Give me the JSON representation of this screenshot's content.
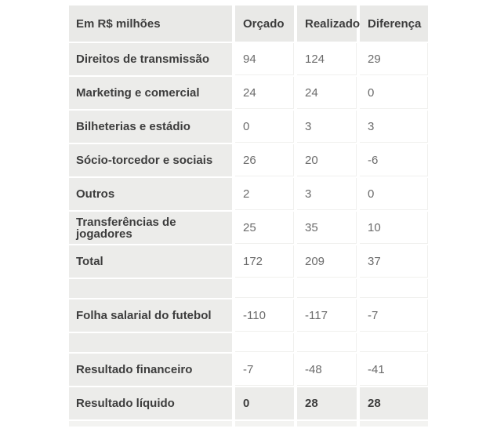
{
  "chart_data": {
    "type": "table",
    "title": "Em R$ milhões",
    "columns": [
      "Em R$ milhões",
      "Orçado",
      "Realizado",
      "Diferença"
    ],
    "rows": [
      {
        "label": "Direitos de transmissão",
        "values": [
          "94",
          "124",
          "29"
        ],
        "style": "data"
      },
      {
        "label": "Marketing e comercial",
        "values": [
          "24",
          "24",
          "0"
        ],
        "style": "data"
      },
      {
        "label": "Bilheterias e estádio",
        "values": [
          "0",
          "3",
          "3"
        ],
        "style": "data"
      },
      {
        "label": "Sócio-torcedor e sociais",
        "values": [
          "26",
          "20",
          "-6"
        ],
        "style": "data"
      },
      {
        "label": "Outros",
        "values": [
          "2",
          "3",
          "0"
        ],
        "style": "data"
      },
      {
        "label": "Transferências de jogadores",
        "values": [
          "25",
          "35",
          "10"
        ],
        "style": "data"
      },
      {
        "label": "Total",
        "values": [
          "172",
          "209",
          "37"
        ],
        "style": "data"
      },
      {
        "label": "",
        "values": [
          "",
          "",
          ""
        ],
        "style": "spacer"
      },
      {
        "label": "Folha salarial do futebol",
        "values": [
          "-110",
          "-117",
          "-7"
        ],
        "style": "data"
      },
      {
        "label": "",
        "values": [
          "",
          "",
          ""
        ],
        "style": "spacer"
      },
      {
        "label": "Resultado financeiro",
        "values": [
          "-7",
          "-48",
          "-41"
        ],
        "style": "data"
      },
      {
        "label": "Resultado líquido",
        "values": [
          "0",
          "28",
          "28"
        ],
        "style": "total"
      }
    ]
  },
  "colors": {
    "header_bg": "#e9e9e7",
    "label_bg": "#ececea",
    "total_bg": "#ececea",
    "partial_bg": "#f3f3f1",
    "cell_bg": "#ffffff",
    "label_text": "#3d3d3d",
    "value_text": "#6b6b6b",
    "grid_line": "#f0f0ee"
  }
}
